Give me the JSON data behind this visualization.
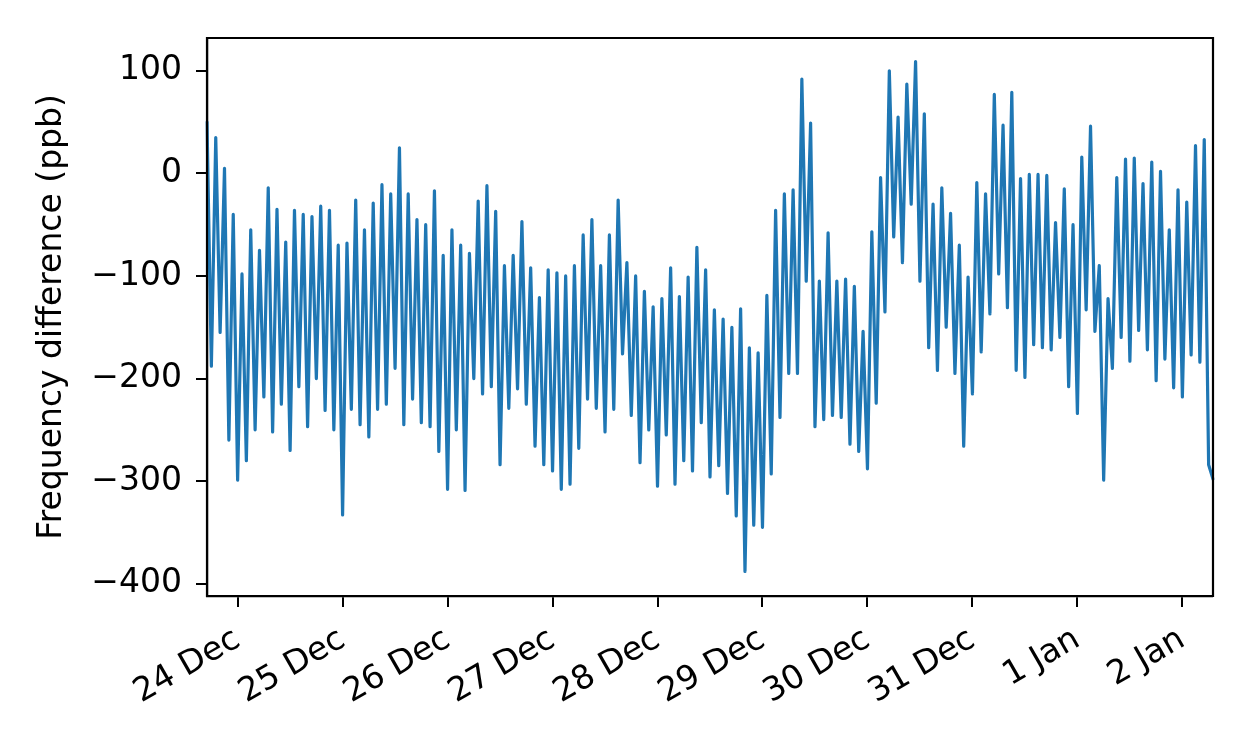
{
  "chart_data": {
    "type": "line",
    "ylabel": "Frequency difference (ppb)",
    "categories": [
      null,
      null,
      null,
      null,
      null,
      null,
      null,
      "24 Dec",
      null,
      null,
      null,
      null,
      null,
      null,
      null,
      null,
      null,
      null,
      null,
      null,
      null,
      null,
      null,
      null,
      null,
      null,
      null,
      null,
      null,
      null,
      null,
      "25 Dec",
      null,
      null,
      null,
      null,
      null,
      null,
      null,
      null,
      null,
      null,
      null,
      null,
      null,
      null,
      null,
      null,
      null,
      null,
      null,
      null,
      null,
      null,
      null,
      "26 Dec",
      null,
      null,
      null,
      null,
      null,
      null,
      null,
      null,
      null,
      null,
      null,
      null,
      null,
      null,
      null,
      null,
      null,
      null,
      null,
      null,
      null,
      null,
      null,
      "27 Dec",
      null,
      null,
      null,
      null,
      null,
      null,
      null,
      null,
      null,
      null,
      null,
      null,
      null,
      null,
      null,
      null,
      null,
      null,
      null,
      null,
      null,
      null,
      null,
      "28 Dec",
      null,
      null,
      null,
      null,
      null,
      null,
      null,
      null,
      null,
      null,
      null,
      null,
      null,
      null,
      null,
      null,
      null,
      null,
      null,
      null,
      null,
      null,
      null,
      "29 Dec",
      null,
      null,
      null,
      null,
      null,
      null,
      null,
      null,
      null,
      null,
      null,
      null,
      null,
      null,
      null,
      null,
      null,
      null,
      null,
      null,
      null,
      null,
      null,
      "30 Dec",
      null,
      null,
      null,
      null,
      null,
      null,
      null,
      null,
      null,
      null,
      null,
      null,
      null,
      null,
      null,
      null,
      null,
      null,
      null,
      null,
      null,
      null,
      null,
      "31 Dec",
      null,
      null,
      null,
      null,
      null,
      null,
      null,
      null,
      null,
      null,
      null,
      null,
      null,
      null,
      null,
      null,
      null,
      null,
      null,
      null,
      null,
      null,
      null,
      "1 Jan",
      null,
      null,
      null,
      null,
      null,
      null,
      null,
      null,
      null,
      null,
      null,
      null,
      null,
      null,
      null,
      null,
      null,
      null,
      null,
      null,
      null,
      null,
      null,
      "2 Jan",
      null,
      null,
      null,
      null,
      null,
      null,
      null
    ],
    "ylim": [
      -412,
      132
    ],
    "yticks": [
      -400,
      -300,
      -200,
      -100,
      0,
      100
    ],
    "grid": false,
    "legend": false,
    "marker": "none",
    "line_style": "solid",
    "series": [
      {
        "color": "#1f77b4",
        "values": [
          50,
          -188,
          35,
          -155,
          5,
          -260,
          -40,
          -299,
          -98,
          -280,
          -55,
          -250,
          -75,
          -218,
          -14,
          -252,
          -35,
          -225,
          -67,
          -270,
          -36,
          -208,
          -40,
          -247,
          -42,
          -200,
          -32,
          -231,
          -36,
          -250,
          -70,
          -333,
          -68,
          -230,
          -26,
          -245,
          -55,
          -257,
          -29,
          -230,
          -11,
          -225,
          -20,
          -190,
          25,
          -245,
          -20,
          -220,
          -45,
          -243,
          -50,
          -247,
          -17,
          -271,
          -80,
          -308,
          -55,
          -250,
          -70,
          -309,
          -78,
          -200,
          -27,
          -215,
          -12,
          -208,
          -37,
          -284,
          -90,
          -229,
          -80,
          -210,
          -47,
          -225,
          -92,
          -266,
          -121,
          -284,
          -94,
          -290,
          -97,
          -308,
          -100,
          -303,
          -90,
          -268,
          -60,
          -220,
          -45,
          -229,
          -90,
          -252,
          -60,
          -230,
          -26,
          -176,
          -87,
          -236,
          -100,
          -282,
          -115,
          -250,
          -130,
          -305,
          -122,
          -255,
          -92,
          -303,
          -120,
          -280,
          -101,
          -290,
          -72,
          -243,
          -94,
          -296,
          -133,
          -285,
          -142,
          -312,
          -150,
          -334,
          -132,
          -388,
          -170,
          -343,
          -175,
          -345,
          -119,
          -293,
          -36,
          -238,
          -20,
          -195,
          -16,
          -195,
          92,
          -105,
          49,
          -247,
          -105,
          -240,
          -58,
          -236,
          -105,
          -238,
          -103,
          -264,
          -110,
          -271,
          -154,
          -288,
          -57,
          -224,
          -4,
          -135,
          100,
          -62,
          55,
          -87,
          87,
          -30,
          109,
          -105,
          58,
          -170,
          -30,
          -192,
          -14,
          -150,
          -39,
          -195,
          -70,
          -266,
          -101,
          -215,
          -9,
          -174,
          -20,
          -137,
          77,
          -98,
          47,
          -131,
          79,
          -192,
          -5,
          -199,
          -1,
          -167,
          -1,
          -170,
          -2,
          -172,
          -48,
          -160,
          -15,
          -208,
          -50,
          -234,
          16,
          -133,
          46,
          -154,
          -90,
          -299,
          -122,
          -190,
          -4,
          -160,
          14,
          -183,
          15,
          -153,
          -10,
          -172,
          11,
          -202,
          2,
          -181,
          -55,
          -209,
          -16,
          -218,
          -28,
          -177,
          27,
          -184,
          33,
          -284,
          -298
        ]
      }
    ]
  }
}
